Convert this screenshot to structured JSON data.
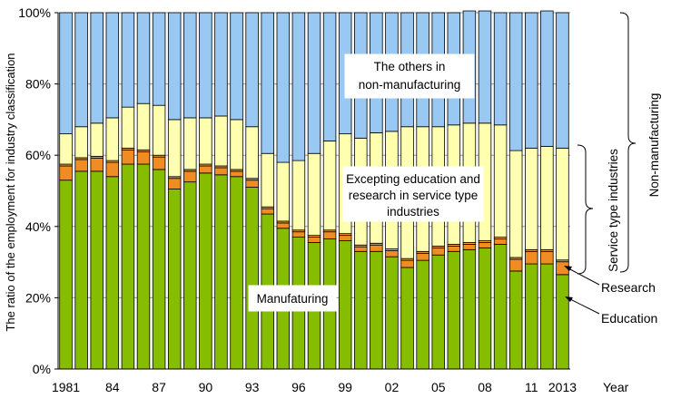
{
  "chart_data": {
    "type": "bar",
    "stacked": true,
    "percent": true,
    "ylabel": "The ratio of the employment for industry classification",
    "xlabel": "Year",
    "ylim": [
      0,
      100
    ],
    "yticks": [
      "0%",
      "20%",
      "40%",
      "60%",
      "80%",
      "100%"
    ],
    "yticks_values": [
      0,
      20,
      40,
      60,
      80,
      100
    ],
    "x": [
      1981,
      1982,
      1983,
      1984,
      1985,
      1986,
      1987,
      1988,
      1989,
      1990,
      1991,
      1992,
      1993,
      1994,
      1995,
      1996,
      1997,
      1998,
      1999,
      2000,
      2001,
      2002,
      2003,
      2004,
      2005,
      2006,
      2007,
      2008,
      2009,
      2010,
      2011,
      2012,
      2013
    ],
    "xtick_labels": [
      {
        "year": 1981,
        "label": "1981"
      },
      {
        "year": 1984,
        "label": "84"
      },
      {
        "year": 1987,
        "label": "87"
      },
      {
        "year": 1990,
        "label": "90"
      },
      {
        "year": 1993,
        "label": "93"
      },
      {
        "year": 1996,
        "label": "96"
      },
      {
        "year": 1999,
        "label": "99"
      },
      {
        "year": 2002,
        "label": "02"
      },
      {
        "year": 2005,
        "label": "05"
      },
      {
        "year": 2008,
        "label": "08"
      },
      {
        "year": 2011,
        "label": "11"
      },
      {
        "year": 2013,
        "label": "2013"
      }
    ],
    "series": [
      {
        "name": "Manufaturing",
        "color": "#86bd00",
        "values": [
          53,
          55.5,
          55.5,
          54,
          57.5,
          57.5,
          56,
          50.5,
          52.5,
          55,
          54.5,
          54,
          51,
          43.5,
          39.5,
          37,
          35.5,
          36.5,
          36,
          33,
          33,
          31.5,
          28.5,
          30.5,
          32,
          33,
          33.5,
          34,
          35,
          27.5,
          29.5,
          29.5,
          26.5
        ]
      },
      {
        "name": "Education",
        "color": "#ef8c24",
        "values": [
          4,
          3.3,
          3.7,
          4,
          4,
          3.5,
          3.5,
          3,
          3,
          2,
          2,
          1.5,
          2,
          1.5,
          1.5,
          1.5,
          1.5,
          2,
          1.5,
          1.3,
          1.8,
          1.7,
          2,
          2,
          2,
          1.5,
          1.5,
          1.5,
          1.5,
          3.3,
          3.5,
          3.5,
          3.6
        ]
      },
      {
        "name": "Research",
        "color": "#f2a33a",
        "values": [
          0.5,
          0.5,
          0.5,
          0.5,
          0.5,
          0.5,
          0.5,
          0.5,
          0.5,
          0.5,
          0.5,
          0.5,
          0.5,
          0.5,
          0.5,
          0.5,
          0.5,
          0.5,
          0.5,
          0.5,
          0.5,
          0.5,
          0.5,
          0.5,
          0.5,
          0.5,
          0.5,
          0.5,
          0.5,
          0.5,
          0.5,
          0.5,
          0.5
        ]
      },
      {
        "name": "Excepting education and research in service type industries",
        "color": "#ffffb0",
        "values": [
          8.5,
          8.7,
          9.3,
          12,
          11.5,
          13,
          14,
          16,
          14.5,
          13,
          14,
          14,
          14.5,
          15,
          16.5,
          19.5,
          23,
          25,
          28,
          30,
          31,
          33,
          37,
          35,
          33.5,
          33.5,
          33.5,
          33,
          31.5,
          30,
          28.5,
          29,
          31.4
        ]
      },
      {
        "name": "The others in non-manufacturing",
        "color": "#99c9f2",
        "values": [
          34,
          32,
          31,
          29.5,
          26.5,
          25.5,
          26,
          30,
          29.5,
          29.5,
          29,
          30,
          32,
          39.5,
          42,
          41.5,
          39.5,
          36,
          34,
          35.2,
          33.7,
          33.3,
          32,
          32,
          32,
          31.5,
          31.5,
          31.5,
          31.5,
          38.7,
          38,
          38,
          38
        ]
      }
    ],
    "annotations": {
      "others": [
        "The others in",
        "non-manufacturing"
      ],
      "service_other": [
        "Excepting education and",
        "research in service type",
        "industries"
      ],
      "manufacturing": "Manufaturing",
      "research": "Research",
      "education": "Education",
      "service_bracket": "Service type industries",
      "nonmanuf_bracket": "Non-manufacturing"
    }
  }
}
